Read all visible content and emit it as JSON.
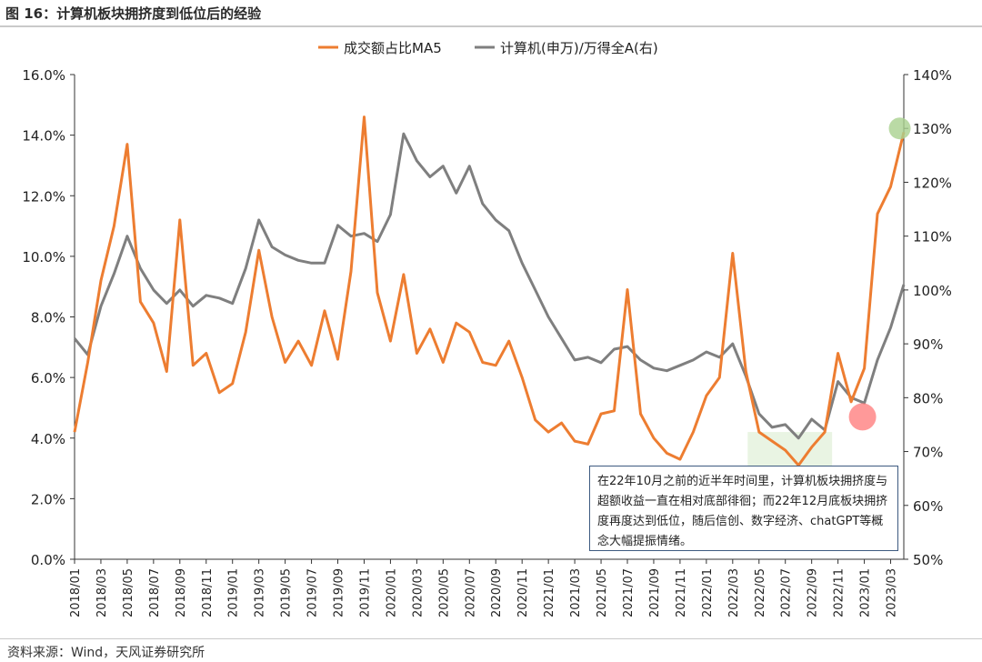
{
  "figure": {
    "title": "图 16：计算机板块拥挤度到低位后的经验",
    "source": "资料来源：Wind，天风证券研究所",
    "annotation": "在22年10月之前的近半年时间里，计算机板块拥挤度与超额收益一直在相对底部徘徊；而22年12月底板块拥挤度再度达到低位，随后信创、数字经济、chatGPT等概念大幅提振情绪。"
  },
  "chart_data": {
    "type": "line",
    "x_ticks": [
      "2018/01",
      "2018/03",
      "2018/05",
      "2018/07",
      "2018/09",
      "2018/11",
      "2019/01",
      "2019/03",
      "2019/05",
      "2019/07",
      "2019/09",
      "2019/11",
      "2020/01",
      "2020/03",
      "2020/05",
      "2020/07",
      "2020/09",
      "2020/11",
      "2021/01",
      "2021/03",
      "2021/05",
      "2021/07",
      "2021/09",
      "2021/11",
      "2022/01",
      "2022/03",
      "2022/05",
      "2022/07",
      "2022/09",
      "2022/11",
      "2023/01",
      "2023/03"
    ],
    "x_range": [
      "2018/01",
      "2023/04"
    ],
    "y_left": {
      "ylim": [
        0,
        16
      ],
      "ticks": [
        "0.0%",
        "2.0%",
        "4.0%",
        "6.0%",
        "8.0%",
        "10.0%",
        "12.0%",
        "14.0%",
        "16.0%"
      ]
    },
    "y_right": {
      "ylim": [
        50,
        140
      ],
      "ticks": [
        "50%",
        "60%",
        "70%",
        "80%",
        "90%",
        "100%",
        "110%",
        "120%",
        "130%",
        "140%"
      ]
    },
    "legend": {
      "position": "top-center"
    },
    "series": [
      {
        "name": "成交额占比MA5",
        "axis": "left",
        "color": "#ed7d31",
        "points": [
          [
            "2018/01",
            4.2
          ],
          [
            "2018/02",
            6.5
          ],
          [
            "2018/03",
            9.2
          ],
          [
            "2018/04",
            11.0
          ],
          [
            "2018/05",
            13.7
          ],
          [
            "2018/06",
            8.5
          ],
          [
            "2018/07",
            7.8
          ],
          [
            "2018/08",
            6.2
          ],
          [
            "2018/09",
            11.2
          ],
          [
            "2018/10",
            6.4
          ],
          [
            "2018/11",
            6.8
          ],
          [
            "2018/12",
            5.5
          ],
          [
            "2019/01",
            5.8
          ],
          [
            "2019/02",
            7.5
          ],
          [
            "2019/03",
            10.2
          ],
          [
            "2019/04",
            8.0
          ],
          [
            "2019/05",
            6.5
          ],
          [
            "2019/06",
            7.2
          ],
          [
            "2019/07",
            6.4
          ],
          [
            "2019/08",
            8.2
          ],
          [
            "2019/09",
            6.6
          ],
          [
            "2019/10",
            9.5
          ],
          [
            "2019/11",
            14.6
          ],
          [
            "2019/12",
            8.8
          ],
          [
            "2020/01",
            7.2
          ],
          [
            "2020/02",
            9.4
          ],
          [
            "2020/03",
            6.8
          ],
          [
            "2020/04",
            7.6
          ],
          [
            "2020/05",
            6.5
          ],
          [
            "2020/06",
            7.8
          ],
          [
            "2020/07",
            7.5
          ],
          [
            "2020/08",
            6.5
          ],
          [
            "2020/09",
            6.4
          ],
          [
            "2020/10",
            7.2
          ],
          [
            "2020/11",
            6.0
          ],
          [
            "2020/12",
            4.6
          ],
          [
            "2021/01",
            4.2
          ],
          [
            "2021/02",
            4.5
          ],
          [
            "2021/03",
            3.9
          ],
          [
            "2021/04",
            3.8
          ],
          [
            "2021/05",
            4.8
          ],
          [
            "2021/06",
            4.9
          ],
          [
            "2021/07",
            8.9
          ],
          [
            "2021/08",
            4.8
          ],
          [
            "2021/09",
            4.0
          ],
          [
            "2021/10",
            3.5
          ],
          [
            "2021/11",
            3.3
          ],
          [
            "2021/12",
            4.2
          ],
          [
            "2022/01",
            5.4
          ],
          [
            "2022/02",
            6.0
          ],
          [
            "2022/03",
            10.1
          ],
          [
            "2022/04",
            6.2
          ],
          [
            "2022/05",
            4.2
          ],
          [
            "2022/06",
            3.9
          ],
          [
            "2022/07",
            3.6
          ],
          [
            "2022/08",
            3.1
          ],
          [
            "2022/09",
            3.7
          ],
          [
            "2022/10",
            4.2
          ],
          [
            "2022/11",
            6.8
          ],
          [
            "2022/12",
            5.2
          ],
          [
            "2023/01",
            6.3
          ],
          [
            "2023/02",
            11.4
          ],
          [
            "2023/03",
            12.3
          ],
          [
            "2023/04",
            14.1
          ]
        ]
      },
      {
        "name": "计算机(申万)/万得全A(右)",
        "axis": "right",
        "color": "#7f7f7f",
        "points": [
          [
            "2018/01",
            91.0
          ],
          [
            "2018/02",
            88.0
          ],
          [
            "2018/03",
            97.0
          ],
          [
            "2018/04",
            103.0
          ],
          [
            "2018/05",
            110.0
          ],
          [
            "2018/06",
            104.0
          ],
          [
            "2018/07",
            100.0
          ],
          [
            "2018/08",
            97.5
          ],
          [
            "2018/09",
            100.0
          ],
          [
            "2018/10",
            97.0
          ],
          [
            "2018/11",
            99.0
          ],
          [
            "2018/12",
            98.5
          ],
          [
            "2019/01",
            97.5
          ],
          [
            "2019/02",
            104.0
          ],
          [
            "2019/03",
            113.0
          ],
          [
            "2019/04",
            108.0
          ],
          [
            "2019/05",
            106.5
          ],
          [
            "2019/06",
            105.5
          ],
          [
            "2019/07",
            105.0
          ],
          [
            "2019/08",
            105.0
          ],
          [
            "2019/09",
            112.0
          ],
          [
            "2019/10",
            110.0
          ],
          [
            "2019/11",
            110.5
          ],
          [
            "2019/12",
            109.0
          ],
          [
            "2020/01",
            114.0
          ],
          [
            "2020/02",
            129.0
          ],
          [
            "2020/03",
            124.0
          ],
          [
            "2020/04",
            121.0
          ],
          [
            "2020/05",
            123.0
          ],
          [
            "2020/06",
            118.0
          ],
          [
            "2020/07",
            123.0
          ],
          [
            "2020/08",
            116.0
          ],
          [
            "2020/09",
            113.0
          ],
          [
            "2020/10",
            111.0
          ],
          [
            "2020/11",
            105.0
          ],
          [
            "2020/12",
            100.0
          ],
          [
            "2021/01",
            95.0
          ],
          [
            "2021/02",
            91.0
          ],
          [
            "2021/03",
            87.0
          ],
          [
            "2021/04",
            87.5
          ],
          [
            "2021/05",
            86.5
          ],
          [
            "2021/06",
            89.0
          ],
          [
            "2021/07",
            89.5
          ],
          [
            "2021/08",
            87.0
          ],
          [
            "2021/09",
            85.5
          ],
          [
            "2021/10",
            85.0
          ],
          [
            "2021/11",
            86.0
          ],
          [
            "2021/12",
            87.0
          ],
          [
            "2022/01",
            88.5
          ],
          [
            "2022/02",
            87.5
          ],
          [
            "2022/03",
            90.0
          ],
          [
            "2022/04",
            84.0
          ],
          [
            "2022/05",
            77.0
          ],
          [
            "2022/06",
            74.5
          ],
          [
            "2022/07",
            75.0
          ],
          [
            "2022/08",
            72.5
          ],
          [
            "2022/09",
            76.0
          ],
          [
            "2022/10",
            74.0
          ],
          [
            "2022/11",
            83.0
          ],
          [
            "2022/12",
            80.0
          ],
          [
            "2023/01",
            79.0
          ],
          [
            "2023/02",
            87.0
          ],
          [
            "2023/03",
            93.0
          ],
          [
            "2023/04",
            101.0
          ]
        ]
      }
    ]
  }
}
